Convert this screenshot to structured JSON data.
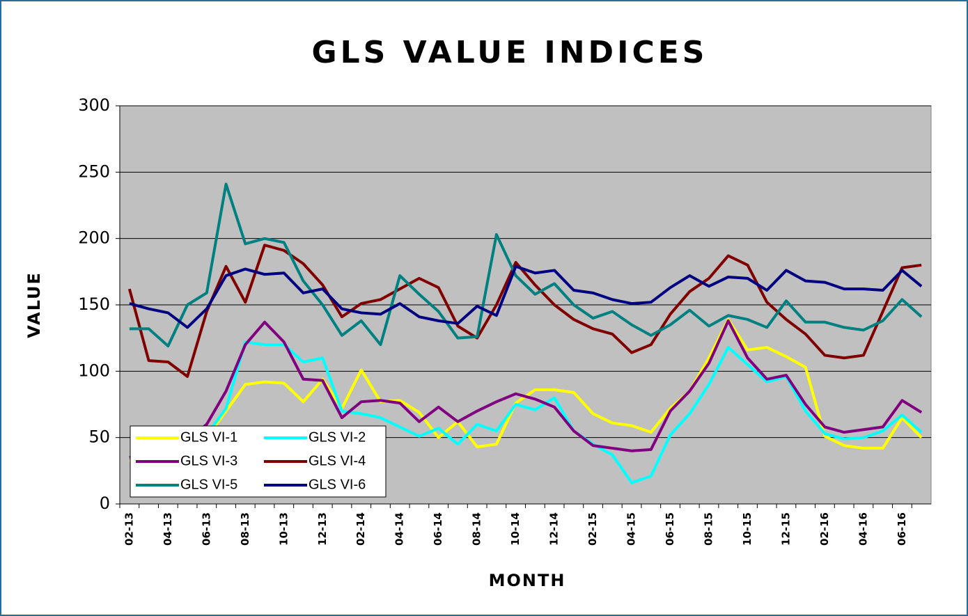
{
  "chart_data": {
    "type": "line",
    "title": "GLS VALUE INDICES",
    "x_label": "MONTH",
    "y_label": "VALUE",
    "categories": [
      "02-13",
      null,
      "04-13",
      null,
      "06-13",
      null,
      "08-13",
      null,
      "10-13",
      null,
      "12-13",
      null,
      "02-14",
      null,
      "04-14",
      null,
      "06-14",
      null,
      "08-14",
      null,
      "10-14",
      null,
      "12-14",
      null,
      "02-15",
      null,
      "04-15",
      null,
      "06-15",
      null,
      "08-15",
      null,
      "10-15",
      null,
      "12-15",
      null,
      "02-16",
      null,
      "04-16",
      null,
      "06-16",
      null
    ],
    "series": [
      {
        "name": "GLS VI-1",
        "color": "#ffff00",
        "values": [
          32,
          35,
          40,
          45,
          50,
          70,
          90,
          92,
          91,
          77,
          94,
          72,
          101,
          77,
          78,
          69,
          50,
          62,
          43,
          45,
          76,
          86,
          86,
          84,
          68,
          61,
          59,
          54,
          72,
          85,
          110,
          139,
          116,
          118,
          111,
          103,
          51,
          44,
          42,
          42,
          65,
          50
        ]
      },
      {
        "name": "GLS VI-2",
        "color": "#00ffff",
        "values": [
          35,
          38,
          40,
          45,
          52,
          72,
          122,
          120,
          120,
          107,
          110,
          70,
          68,
          65,
          58,
          51,
          57,
          45,
          60,
          55,
          75,
          71,
          80,
          55,
          45,
          37,
          16,
          21,
          52,
          68,
          90,
          118,
          105,
          92,
          96,
          70,
          53,
          49,
          50,
          55,
          67,
          54
        ]
      },
      {
        "name": "GLS VI-3",
        "color": "#800080",
        "values": [
          35,
          38,
          42,
          48,
          60,
          85,
          120,
          137,
          122,
          94,
          93,
          65,
          77,
          78,
          76,
          62,
          73,
          62,
          70,
          77,
          83,
          79,
          73,
          55,
          44,
          42,
          40,
          41,
          70,
          85,
          106,
          138,
          110,
          94,
          97,
          75,
          58,
          54,
          56,
          58,
          78,
          69
        ]
      },
      {
        "name": "GLS VI-4",
        "color": "#800000",
        "values": [
          162,
          108,
          107,
          96,
          145,
          179,
          152,
          195,
          191,
          181,
          165,
          141,
          151,
          154,
          162,
          170,
          163,
          134,
          125,
          150,
          182,
          165,
          150,
          139,
          132,
          128,
          114,
          120,
          143,
          160,
          170,
          187,
          180,
          152,
          139,
          128,
          112,
          110,
          112,
          145,
          178,
          180
        ]
      },
      {
        "name": "GLS VI-5",
        "color": "#008080",
        "values": [
          132,
          132,
          119,
          150,
          159,
          241,
          196,
          200,
          197,
          168,
          150,
          127,
          138,
          120,
          172,
          158,
          145,
          125,
          126,
          203,
          172,
          158,
          166,
          150,
          140,
          145,
          135,
          127,
          135,
          146,
          134,
          142,
          139,
          133,
          153,
          137,
          137,
          133,
          131,
          138,
          154,
          141
        ]
      },
      {
        "name": "GLS VI-6",
        "color": "#000080",
        "values": [
          151,
          147,
          144,
          133,
          147,
          172,
          177,
          173,
          174,
          159,
          162,
          147,
          144,
          143,
          151,
          141,
          138,
          136,
          149,
          142,
          179,
          174,
          176,
          161,
          159,
          154,
          151,
          152,
          163,
          172,
          164,
          171,
          170,
          161,
          176,
          168,
          167,
          162,
          162,
          161,
          176,
          164
        ]
      }
    ],
    "ylim": [
      0,
      300
    ],
    "yticks": [
      0,
      50,
      100,
      150,
      200,
      250,
      300
    ],
    "grid": true,
    "legend": "lower left"
  }
}
